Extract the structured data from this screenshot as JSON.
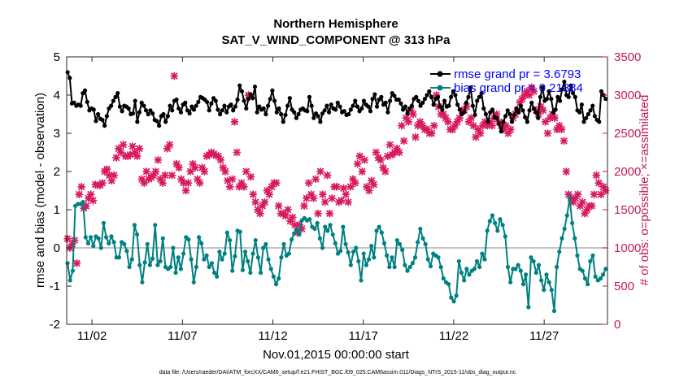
{
  "chart_data": {
    "type": "line",
    "title_line1": "Northern Hemisphere",
    "title_line2": "SAT_V_WIND_COMPONENT @ 313 hPa",
    "xlabel": "Nov.01,2015 00:00:00 start",
    "ylabel_left": "rmse and bias (model - observation)",
    "ylabel_right": "# of obs: o=possible; ×=assimilated",
    "footer": "data file: /Users/raeder/DAI/ATM_forcXX/CAM6_setup/f.e21.FHIST_BGC.f09_025.CAM6assim.011/Diags_NTrS_2015-11/obs_diag_output.nc",
    "xlim": [
      0.6,
      30.5
    ],
    "ylim_left": [
      -2,
      5
    ],
    "ylim_right": [
      0,
      3500
    ],
    "x_ticks": [
      {
        "x": 2,
        "label": "11/02"
      },
      {
        "x": 7,
        "label": "11/07"
      },
      {
        "x": 12,
        "label": "11/12"
      },
      {
        "x": 17,
        "label": "11/17"
      },
      {
        "x": 22,
        "label": "11/22"
      },
      {
        "x": 27,
        "label": "11/27"
      }
    ],
    "y_ticks_left": [
      "-2",
      "-1",
      "0",
      "1",
      "2",
      "3",
      "4",
      "5"
    ],
    "y_ticks_right": [
      "0",
      "500",
      "1000",
      "1500",
      "2000",
      "2500",
      "3000",
      "3500"
    ],
    "colors": {
      "rmse": "#000000",
      "bias": "#008080",
      "obs": "#d81b60",
      "legend_text": "#0000ff",
      "zero_line": "#b0b0b0",
      "right_axis": "#c2185b"
    },
    "series": [
      {
        "name": "rmse grand pr = 3.6793",
        "axis": "left",
        "values": [
          4.6,
          4.45,
          3.78,
          3.8,
          3.72,
          3.75,
          3.72,
          4.05,
          4.12,
          3.82,
          3.6,
          3.65,
          3.62,
          3.32,
          3.5,
          3.38,
          3.35,
          3.2,
          3.45,
          3.65,
          3.72,
          3.85,
          3.95,
          4.05,
          3.7,
          3.58,
          3.72,
          3.7,
          3.65,
          3.5,
          3.52,
          3.85,
          3.3,
          3.55,
          3.8,
          3.72,
          3.6,
          3.5,
          3.6,
          3.52,
          3.35,
          3.32,
          3.2,
          3.45,
          3.5,
          3.3,
          3.45,
          3.72,
          3.6,
          3.85,
          3.88,
          3.65,
          3.55,
          3.75,
          3.8,
          3.6,
          3.52,
          3.7,
          3.62,
          3.72,
          3.82,
          3.95,
          3.92,
          3.88,
          3.82,
          3.6,
          3.78,
          3.92,
          3.85,
          3.62,
          3.5,
          3.6,
          3.72,
          3.55,
          3.7,
          3.75,
          3.6,
          3.7,
          3.88,
          4.25,
          4.1,
          3.85,
          3.65,
          3.9,
          4.02,
          3.92,
          4.22,
          3.55,
          3.7,
          3.62,
          3.65,
          3.5,
          3.72,
          3.9,
          4.12,
          3.85,
          3.55,
          3.65,
          3.5,
          3.3,
          3.48,
          3.72,
          3.92,
          3.62,
          3.55,
          3.4,
          3.5,
          3.62,
          3.65,
          3.6,
          3.58,
          3.95,
          3.72,
          3.4,
          3.52,
          3.45,
          3.3,
          3.52,
          3.6,
          3.72,
          3.55,
          3.75,
          3.65,
          3.62,
          3.8,
          3.7,
          3.55,
          3.58,
          3.48,
          3.5,
          3.62,
          3.72,
          3.85,
          3.7,
          3.58,
          3.65,
          3.85,
          3.75,
          3.7,
          3.58,
          3.9,
          4.02,
          3.7,
          3.88,
          3.95,
          3.75,
          3.8,
          3.55,
          3.85,
          4.05,
          3.98,
          3.88,
          3.88,
          3.78,
          3.62,
          3.7,
          3.52,
          3.65,
          3.72,
          3.9,
          3.95,
          3.85,
          3.72,
          3.8,
          3.9,
          4.0,
          4.1,
          3.95,
          3.75,
          3.9,
          3.95,
          3.7,
          3.62,
          3.85,
          3.7,
          3.72,
          3.95,
          4.1,
          4.0,
          3.75,
          3.62,
          3.5,
          3.55,
          3.8,
          3.95,
          4.2,
          3.72,
          3.48,
          3.85,
          3.95,
          4.05,
          3.65,
          3.5,
          3.3,
          3.55,
          3.62,
          3.42,
          3.4,
          3.25,
          3.05,
          3.3,
          3.45,
          3.6,
          3.5,
          3.3,
          3.48,
          3.65,
          3.55,
          3.72,
          3.6,
          3.42,
          3.3,
          3.6,
          3.8,
          3.65,
          3.55,
          3.4,
          3.95,
          4.2,
          3.85,
          3.9,
          4.1,
          3.9,
          3.55,
          3.62,
          3.95,
          3.85,
          4.15,
          4.35,
          4.0,
          3.95,
          4.25,
          4.05,
          3.95,
          3.6,
          3.55,
          3.75,
          3.3,
          3.4,
          3.5,
          3.6,
          3.72,
          3.45,
          3.35,
          3.3,
          4.1,
          4.0,
          3.9
        ]
      },
      {
        "name": "bias grand pr = 0.21884",
        "axis": "left",
        "values": [
          -0.4,
          -0.85,
          -0.6,
          1.1,
          1.15,
          1.15,
          1.2,
          0.28,
          0.12,
          0.28,
          0.05,
          0.3,
          0.25,
          0.0,
          0.65,
          0.28,
          0.12,
          0.3,
          0.15,
          -0.25,
          -0.25,
          0.15,
          0.1,
          -0.08,
          -0.5,
          -0.3,
          0.6,
          0.35,
          -0.45,
          -0.9,
          -0.38,
          0.1,
          -0.45,
          -0.28,
          0.6,
          -0.45,
          -0.35,
          0.25,
          -0.5,
          -0.55,
          -0.5,
          0.0,
          -0.65,
          -0.25,
          -0.55,
          -0.15,
          0.28,
          0.22,
          -0.3,
          -0.9,
          -0.5,
          0.28,
          0.12,
          -0.3,
          -0.2,
          -0.5,
          -0.4,
          -0.65,
          -0.75,
          -0.1,
          -0.3,
          -0.15,
          0.4,
          0.2,
          -0.6,
          -0.22,
          0.45,
          0.42,
          -0.58,
          -0.1,
          -0.35,
          -0.65,
          -0.15,
          0.2,
          -0.25,
          -0.65,
          0.0,
          0.1,
          -0.3,
          -0.55,
          -0.75,
          -0.95,
          -0.8,
          -0.25,
          0.1,
          -0.2,
          -0.15,
          0.22,
          0.38,
          0.48,
          0.35,
          0.72,
          0.78,
          0.72,
          0.75,
          0.55,
          0.5,
          0.65,
          0.25,
          0.0,
          0.55,
          0.45,
          0.6,
          0.35,
          0.12,
          -0.15,
          -0.08,
          0.55,
          0.1,
          -0.12,
          -0.45,
          -0.1,
          0.0,
          -0.35,
          -0.85,
          -0.15,
          -0.45,
          -0.3,
          0.05,
          -0.25,
          0.45,
          0.55,
          0.4,
          0.12,
          -0.2,
          -0.5,
          -0.25,
          -0.5,
          0.2,
          0.1,
          -0.05,
          -0.45,
          -0.6,
          -0.5,
          -0.4,
          -0.25,
          0.15,
          0.5,
          0.25,
          0.1,
          -0.3,
          -0.48,
          -0.15,
          -0.2,
          -0.25,
          -0.5,
          -0.8,
          -0.9,
          -0.95,
          -1.3,
          -1.4,
          -1.25,
          -0.35,
          -0.65,
          -0.85,
          -0.55,
          -0.7,
          -0.6,
          -0.55,
          -0.35,
          -0.5,
          -0.15,
          -0.3,
          0.45,
          0.7,
          0.85,
          0.65,
          0.45,
          0.75,
          0.6,
          0.3,
          -0.5,
          -0.9,
          -0.55,
          -0.55,
          -0.45,
          -0.6,
          -0.95,
          -0.7,
          -1.55,
          -0.25,
          -0.35,
          -0.65,
          -0.45,
          -0.85,
          -1.1,
          -0.7,
          -0.9,
          -1.1,
          -1.65,
          -0.5,
          -0.1,
          0.25,
          0.5,
          0.85,
          1.3,
          0.65,
          0.25,
          -0.2,
          -0.55,
          -0.6,
          -0.8,
          -0.95,
          -0.35,
          -0.2,
          -0.75,
          -0.85,
          -0.8,
          -0.7,
          -0.55
        ]
      },
      {
        "name": "obs assimilated",
        "axis": "right",
        "values": [
          1120,
          1000,
          1050,
          1100,
          800,
          1700,
          1800,
          1520,
          1550,
          1650,
          1700,
          1620,
          1830,
          1820,
          1820,
          1850,
          2000,
          2030,
          1950,
          1880,
          1950,
          2180,
          2300,
          2250,
          2350,
          2200,
          2200,
          2220,
          2330,
          2250,
          2200,
          2300,
          1900,
          1850,
          2000,
          1900,
          1920,
          1950,
          2000,
          2150,
          1900,
          1850,
          1950,
          2300,
          2350,
          1950,
          3250,
          2100,
          2050,
          1900,
          1850,
          1750,
          1850,
          2000,
          2100,
          2050,
          1900,
          1850,
          2050,
          2000,
          2200,
          2220,
          2250,
          2230,
          2210,
          2200,
          2150,
          2050,
          2000,
          1880,
          1800,
          1900,
          2650,
          2250,
          1800,
          1850,
          1800,
          2000,
          3000,
          1930,
          1700,
          1600,
          1500,
          1450,
          1550,
          1600,
          1750,
          1700,
          1800,
          1850,
          1850,
          1550,
          1450,
          1450,
          1420,
          1500,
          1350,
          1400,
          1300,
          1200,
          1300,
          1250,
          1550,
          1650,
          1850,
          1700,
          1650,
          1900,
          1450,
          2000,
          1700,
          1600,
          1950,
          1450,
          1650,
          1800,
          1800,
          1600,
          1620,
          1780,
          1700,
          1600,
          1800,
          1900,
          1850,
          2100,
          2200,
          2000,
          2150,
          1800,
          1750,
          1880,
          1830,
          2250,
          2180,
          2150,
          2050,
          2000,
          2200,
          2350,
          2220,
          2250,
          2300,
          2250,
          2600,
          2400,
          2700,
          2650,
          2800,
          2750,
          2450,
          2600,
          2650,
          2600,
          2550,
          2550,
          2500,
          2500,
          2600,
          3000,
          2850,
          2750,
          2750,
          2700,
          2650,
          2550,
          2550,
          2600,
          2650,
          2700,
          2800,
          2800,
          2850,
          2650,
          2700,
          2600,
          2450,
          2550,
          2500,
          2600,
          2650,
          2600,
          2650,
          2600,
          2700,
          2750,
          2650,
          2600,
          2550,
          2600,
          2500,
          2550,
          2700,
          2750,
          2800,
          2900,
          2950,
          3000,
          3050,
          3000,
          3100,
          3050,
          2800,
          2750,
          2850,
          2800,
          2650,
          2500,
          2700,
          2750,
          2700,
          2550,
          2600,
          2550,
          2400,
          2000,
          1700,
          1650,
          1600,
          1650,
          1700,
          1550,
          1600,
          1450,
          1500,
          1550,
          1550,
          1700,
          1950,
          1850,
          1700,
          1800,
          1750
        ]
      }
    ]
  }
}
